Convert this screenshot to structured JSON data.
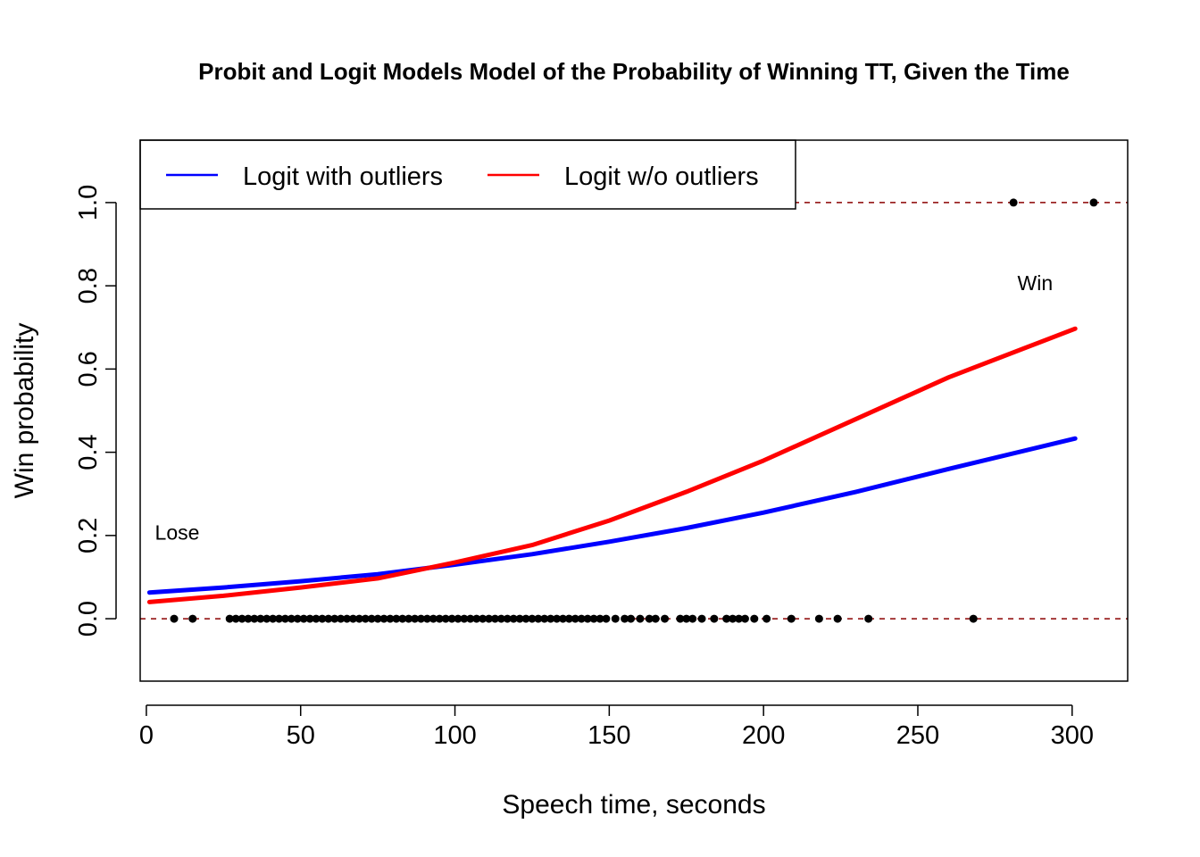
{
  "chart_data": {
    "type": "line",
    "title": "Probit and Logit Models Model of the Probability of Winning TT, Given the Time",
    "xlabel": "Speech time, seconds",
    "ylabel": "Win probability",
    "xlim": [
      -2,
      318
    ],
    "ylim": [
      -0.15,
      1.15
    ],
    "x_ticks": [
      0,
      50,
      100,
      150,
      200,
      250,
      300
    ],
    "y_ticks": [
      0.0,
      0.2,
      0.4,
      0.6,
      0.8,
      1.0
    ],
    "x_tick_labels": [
      "0",
      "50",
      "100",
      "150",
      "200",
      "250",
      "300"
    ],
    "y_tick_labels": [
      "0.0",
      "0.2",
      "0.4",
      "0.6",
      "0.8",
      "1.0"
    ],
    "grid": false,
    "legend_position": "top-left",
    "reference_lines": [
      {
        "y": 0,
        "style": "dashed",
        "color": "#8b0000"
      },
      {
        "y": 1,
        "style": "dashed",
        "color": "#8b0000"
      }
    ],
    "annotations": [
      {
        "text": "Lose",
        "x": 10,
        "y": 0.19
      },
      {
        "text": "Win",
        "x": 288,
        "y": 0.79
      }
    ],
    "series": [
      {
        "name": "Logit with outliers",
        "color": "#0000ff",
        "x": [
          1,
          25,
          50,
          75,
          100,
          125,
          150,
          175,
          200,
          230,
          260,
          301
        ],
        "y": [
          0.063,
          0.075,
          0.09,
          0.107,
          0.13,
          0.155,
          0.185,
          0.218,
          0.255,
          0.305,
          0.36,
          0.433
        ]
      },
      {
        "name": "Logit w/o outliers",
        "color": "#ff0000",
        "x": [
          1,
          25,
          50,
          75,
          100,
          125,
          150,
          175,
          200,
          230,
          260,
          301
        ],
        "y": [
          0.04,
          0.055,
          0.075,
          0.097,
          0.135,
          0.177,
          0.236,
          0.305,
          0.38,
          0.48,
          0.58,
          0.697
        ]
      }
    ],
    "observations": {
      "color": "#000000",
      "points": [
        {
          "x": 9,
          "y": 0
        },
        {
          "x": 15,
          "y": 0
        },
        {
          "x": 27,
          "y": 0
        },
        {
          "x": 29,
          "y": 0
        },
        {
          "x": 31,
          "y": 0
        },
        {
          "x": 33,
          "y": 0
        },
        {
          "x": 35,
          "y": 0
        },
        {
          "x": 37,
          "y": 0
        },
        {
          "x": 39,
          "y": 0
        },
        {
          "x": 41,
          "y": 0
        },
        {
          "x": 43,
          "y": 0
        },
        {
          "x": 45,
          "y": 0
        },
        {
          "x": 47,
          "y": 0
        },
        {
          "x": 49,
          "y": 0
        },
        {
          "x": 51,
          "y": 0
        },
        {
          "x": 53,
          "y": 0
        },
        {
          "x": 55,
          "y": 0
        },
        {
          "x": 57,
          "y": 0
        },
        {
          "x": 59,
          "y": 0
        },
        {
          "x": 61,
          "y": 0
        },
        {
          "x": 63,
          "y": 0
        },
        {
          "x": 65,
          "y": 0
        },
        {
          "x": 67,
          "y": 0
        },
        {
          "x": 69,
          "y": 0
        },
        {
          "x": 71,
          "y": 0
        },
        {
          "x": 73,
          "y": 0
        },
        {
          "x": 75,
          "y": 0
        },
        {
          "x": 77,
          "y": 0
        },
        {
          "x": 79,
          "y": 0
        },
        {
          "x": 81,
          "y": 0
        },
        {
          "x": 83,
          "y": 0
        },
        {
          "x": 85,
          "y": 0
        },
        {
          "x": 87,
          "y": 0
        },
        {
          "x": 89,
          "y": 0
        },
        {
          "x": 91,
          "y": 0
        },
        {
          "x": 93,
          "y": 0
        },
        {
          "x": 95,
          "y": 0
        },
        {
          "x": 97,
          "y": 0
        },
        {
          "x": 99,
          "y": 0
        },
        {
          "x": 101,
          "y": 0
        },
        {
          "x": 103,
          "y": 0
        },
        {
          "x": 105,
          "y": 0
        },
        {
          "x": 107,
          "y": 0
        },
        {
          "x": 109,
          "y": 0
        },
        {
          "x": 111,
          "y": 0
        },
        {
          "x": 113,
          "y": 0
        },
        {
          "x": 115,
          "y": 0
        },
        {
          "x": 117,
          "y": 0
        },
        {
          "x": 119,
          "y": 0
        },
        {
          "x": 121,
          "y": 0
        },
        {
          "x": 123,
          "y": 0
        },
        {
          "x": 125,
          "y": 0
        },
        {
          "x": 127,
          "y": 0
        },
        {
          "x": 129,
          "y": 0
        },
        {
          "x": 131,
          "y": 0
        },
        {
          "x": 133,
          "y": 0
        },
        {
          "x": 135,
          "y": 0
        },
        {
          "x": 137,
          "y": 0
        },
        {
          "x": 139,
          "y": 0
        },
        {
          "x": 141,
          "y": 0
        },
        {
          "x": 143,
          "y": 0
        },
        {
          "x": 145,
          "y": 0
        },
        {
          "x": 147,
          "y": 0
        },
        {
          "x": 149,
          "y": 0
        },
        {
          "x": 152,
          "y": 0
        },
        {
          "x": 155,
          "y": 0
        },
        {
          "x": 157,
          "y": 0
        },
        {
          "x": 160,
          "y": 0
        },
        {
          "x": 163,
          "y": 0
        },
        {
          "x": 165,
          "y": 0
        },
        {
          "x": 168,
          "y": 0
        },
        {
          "x": 173,
          "y": 0
        },
        {
          "x": 175,
          "y": 0
        },
        {
          "x": 177,
          "y": 0
        },
        {
          "x": 180,
          "y": 0
        },
        {
          "x": 184,
          "y": 0
        },
        {
          "x": 188,
          "y": 0
        },
        {
          "x": 190,
          "y": 0
        },
        {
          "x": 192,
          "y": 0
        },
        {
          "x": 194,
          "y": 0
        },
        {
          "x": 197,
          "y": 0
        },
        {
          "x": 201,
          "y": 0
        },
        {
          "x": 209,
          "y": 0
        },
        {
          "x": 218,
          "y": 0
        },
        {
          "x": 224,
          "y": 0
        },
        {
          "x": 234,
          "y": 0
        },
        {
          "x": 268,
          "y": 0
        },
        {
          "x": 281,
          "y": 1
        },
        {
          "x": 307,
          "y": 1
        }
      ]
    }
  }
}
